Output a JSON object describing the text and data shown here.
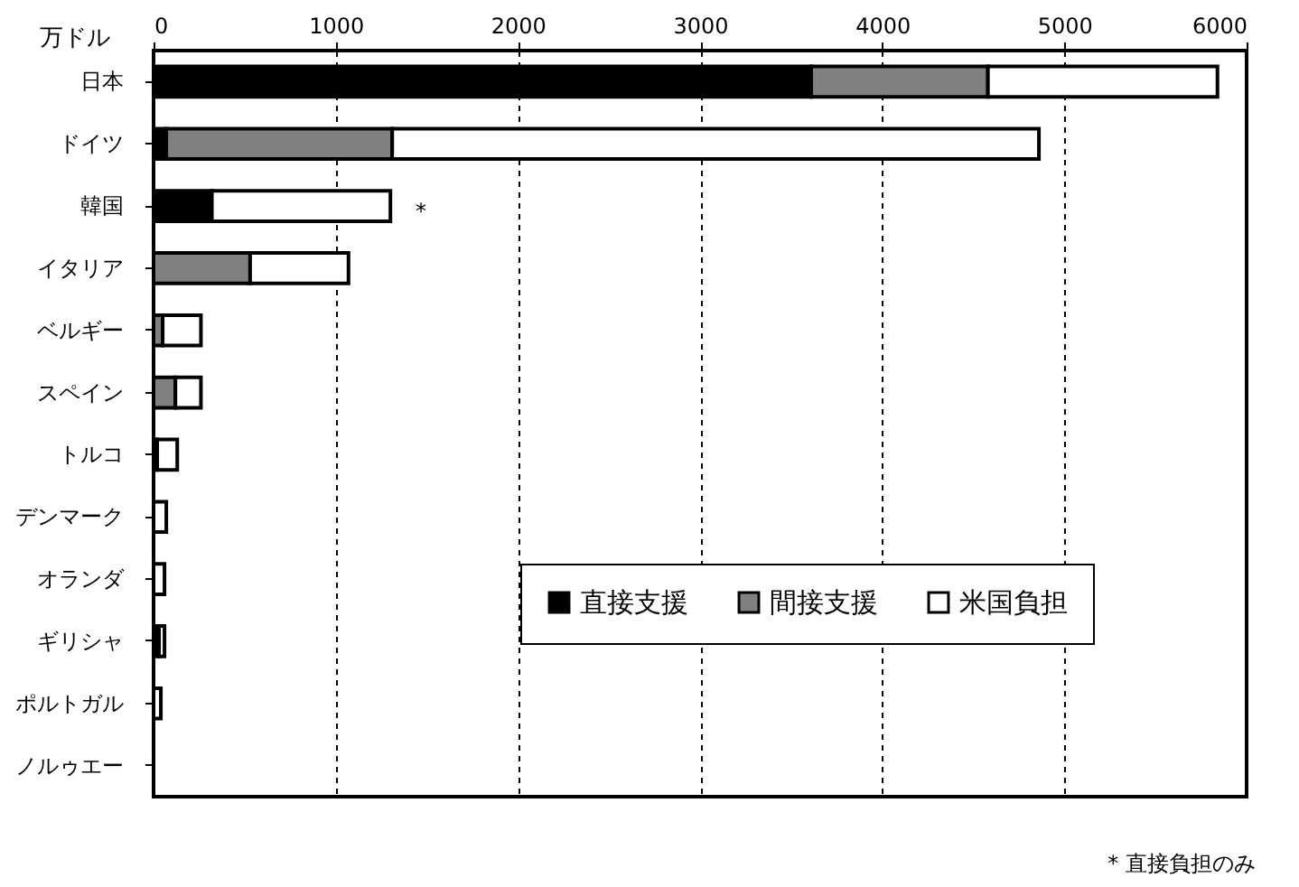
{
  "chart_data": {
    "type": "bar",
    "orientation": "horizontal",
    "stacked": true,
    "xlabel": "万ドル",
    "categories": [
      "日本",
      "ドイツ",
      "韓国",
      "イタリア",
      "ベルギー",
      "スペイン",
      "トルコ",
      "デンマーク",
      "オランダ",
      "ギリシャ",
      "ポルトガル",
      "ノルゥエー"
    ],
    "series": [
      {
        "name": "直接支援",
        "color": "#000000",
        "values": [
          3610,
          70,
          320,
          0,
          0,
          0,
          20,
          0,
          0,
          30,
          0,
          0
        ]
      },
      {
        "name": "間接支援",
        "color": "#808080",
        "values": [
          970,
          1240,
          0,
          530,
          50,
          120,
          0,
          0,
          0,
          0,
          0,
          0
        ]
      },
      {
        "name": "米国負担",
        "color": "#ffffff",
        "values": [
          1260,
          3550,
          980,
          540,
          210,
          140,
          110,
          70,
          60,
          30,
          40,
          0
        ]
      }
    ],
    "xlim": [
      0,
      6000
    ],
    "xticks": [
      0,
      1000,
      2000,
      3000,
      4000,
      5000,
      6000
    ],
    "grid": "x",
    "legend": "bottom right",
    "annotations": [
      "*",
      "* 直接負担のみ"
    ]
  }
}
